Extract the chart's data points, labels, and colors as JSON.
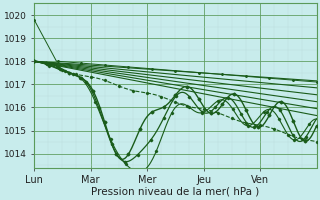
{
  "title": "",
  "xlabel": "Pression niveau de la mer( hPa )",
  "ylabel": "",
  "background_color": "#c8ecec",
  "grid_color_minor": "#a8cece",
  "grid_color_major": "#5a9a5a",
  "line_color": "#1a5c1a",
  "ylim": [
    1013.4,
    1020.5
  ],
  "xlim": [
    0,
    120
  ],
  "xtick_positions": [
    0,
    24,
    48,
    72,
    96
  ],
  "xtick_labels": [
    "Lun",
    "Mar",
    "Mer",
    "Jeu",
    "Ven"
  ],
  "ytick_values": [
    1014,
    1015,
    1016,
    1017,
    1018,
    1019,
    1020
  ],
  "ytick_fontsize": 6.5,
  "xtick_fontsize": 7
}
